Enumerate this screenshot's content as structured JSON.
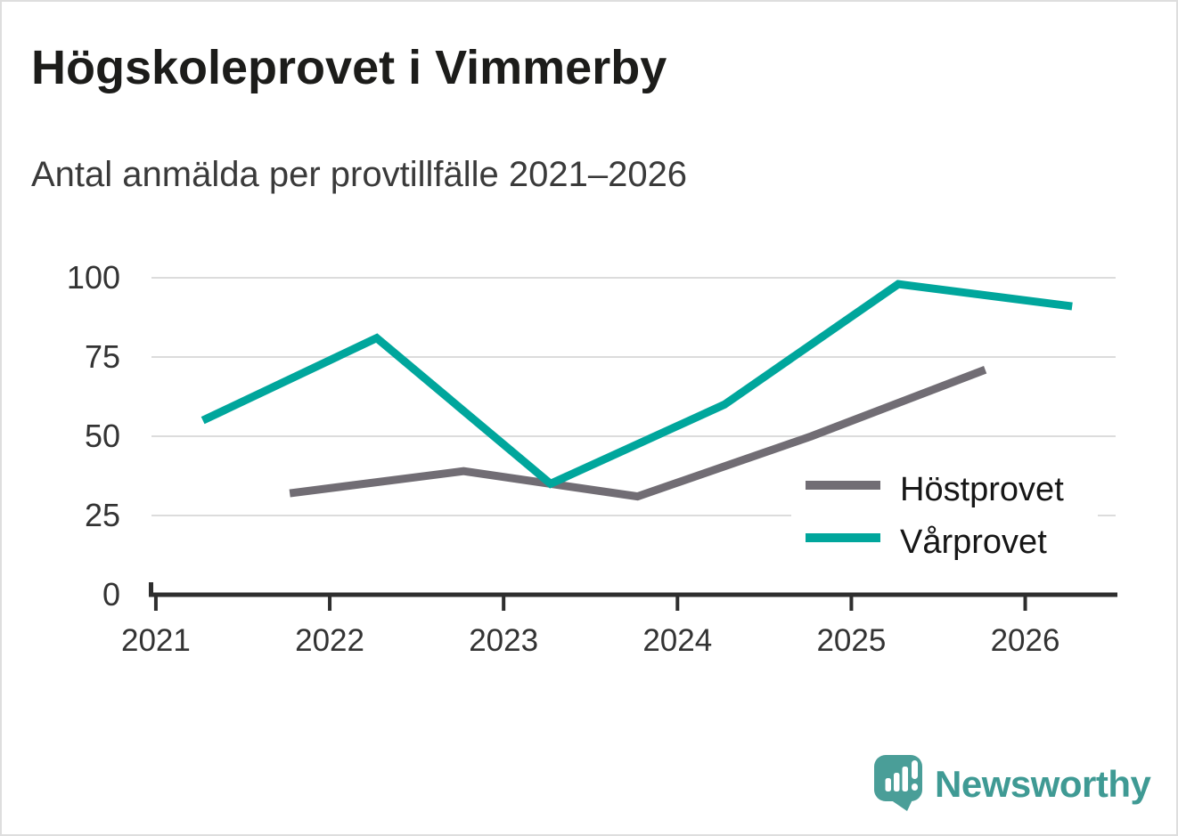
{
  "header": {
    "title": "Högskoleprovet i Vimmerby",
    "subtitle": "Antal anmälda per provtillfälle 2021–2026"
  },
  "chart_data": {
    "type": "line",
    "title": "Högskoleprovet i Vimmerby",
    "subtitle": "Antal anmälda per provtillfälle 2021–2026",
    "grid": "horizontal",
    "x_axis": {
      "ticks": [
        "2021",
        "2022",
        "2023",
        "2024",
        "2025",
        "2026"
      ],
      "range": [
        2020.78,
        2026.52
      ]
    },
    "y_axis": {
      "ticks": [
        0,
        25,
        50,
        75,
        100
      ],
      "range": [
        0,
        100
      ]
    },
    "series": [
      {
        "name": "Höstprovet",
        "color": "#716d74",
        "x": [
          2021.77,
          2022.77,
          2023.77,
          2024.77,
          2025.77
        ],
        "values": [
          32,
          39,
          31,
          50,
          71
        ]
      },
      {
        "name": "Vårprovet",
        "color": "#00a69c",
        "x": [
          2021.27,
          2022.27,
          2023.27,
          2024.27,
          2025.27,
          2026.27
        ],
        "values": [
          55,
          81,
          35,
          60,
          98,
          91
        ]
      }
    ],
    "legend": {
      "position": "inside-right",
      "entries": [
        "Höstprovet",
        "Vårprovet"
      ]
    }
  },
  "footer": {
    "brand": "Newsworthy",
    "logo_color": "#4a9e98",
    "wordmark_color": "#3f9a94"
  }
}
